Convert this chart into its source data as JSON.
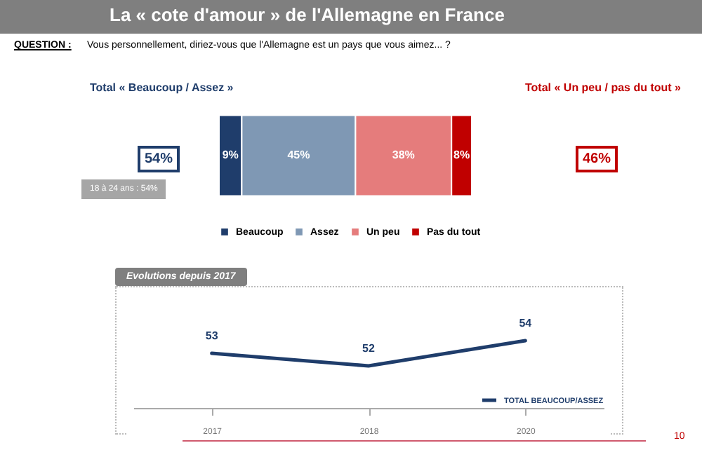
{
  "chart_data": [
    {
      "type": "bar",
      "title": "La « cote d'amour » de l'Allemagne en France",
      "orientation": "horizontal",
      "stacked": true,
      "categories": [
        null
      ],
      "legend": "bottom",
      "series": [
        {
          "name": "Beaucoup",
          "color": "#1f3d6b",
          "values": [
            9
          ],
          "value_labels": [
            "9%"
          ]
        },
        {
          "name": "Assez",
          "color": "#7f98b4",
          "values": [
            45
          ],
          "value_labels": [
            "45%"
          ]
        },
        {
          "name": "Un peu",
          "color": "#e57c7c",
          "values": [
            38
          ],
          "value_labels": [
            "38%"
          ]
        },
        {
          "name": "Pas du tout",
          "color": "#c00000",
          "values": [
            8
          ],
          "value_labels": [
            "8%"
          ]
        }
      ],
      "annotations": [
        "QUESTION :",
        "Vous personnellement, diriez-vous que l'Allemagne est un pays que vous aimez... ?",
        "Total « Beaucoup / Assez »",
        "Total « Un peu / pas du tout »",
        "54%",
        "46%",
        "18 à 24 ans : 54%"
      ]
    },
    {
      "type": "line",
      "title": "Evolutions depuis 2017",
      "categories": [
        "2017",
        "2018",
        "2020"
      ],
      "data_labels": true,
      "legend": "bottom right",
      "marker": "none",
      "line_style": "solid",
      "grid": false,
      "tick_labels": "x",
      "series": [
        {
          "name": "TOTAL BEAUCOUP/ASSEZ",
          "color": "#1f3d6b",
          "values": [
            53,
            52,
            54
          ]
        }
      ],
      "annotations": [
        "10"
      ]
    }
  ]
}
